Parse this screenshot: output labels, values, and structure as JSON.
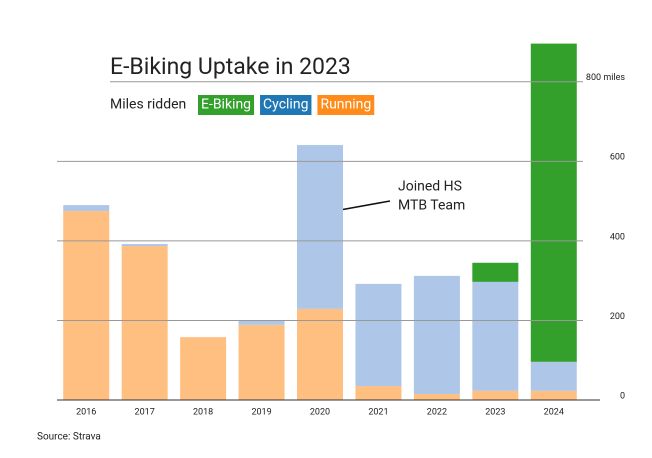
{
  "chart_data": {
    "type": "stacked_bar",
    "title": "E-Biking Uptake in 2023",
    "legend_title": "Miles ridden",
    "source": "Source: Strava",
    "annotation": [
      "Joined HS",
      "MTB Team"
    ],
    "categories": [
      "2016",
      "2017",
      "2018",
      "2019",
      "2020",
      "2021",
      "2022",
      "2023",
      "2024"
    ],
    "series": [
      {
        "name": "Running",
        "color": "#ffbf80",
        "legend_color": "#ff8c1a",
        "values": [
          475,
          387,
          158,
          189,
          229,
          35,
          15,
          23,
          23
        ]
      },
      {
        "name": "Cycling",
        "color": "#aec7e8",
        "legend_color": "#1f77b4",
        "values": [
          15,
          5,
          0,
          10,
          412,
          257,
          297,
          274,
          73
        ]
      },
      {
        "name": "E-Biking",
        "color": "#33a02c",
        "legend_color": "#33a02c",
        "values": [
          0,
          0,
          0,
          0,
          0,
          0,
          0,
          48,
          800
        ]
      }
    ],
    "ylim": [
      0,
      900
    ],
    "yticks": [
      0,
      200,
      400,
      600,
      {
        "value": 800,
        "label": "800 miles"
      }
    ],
    "grid": true
  }
}
